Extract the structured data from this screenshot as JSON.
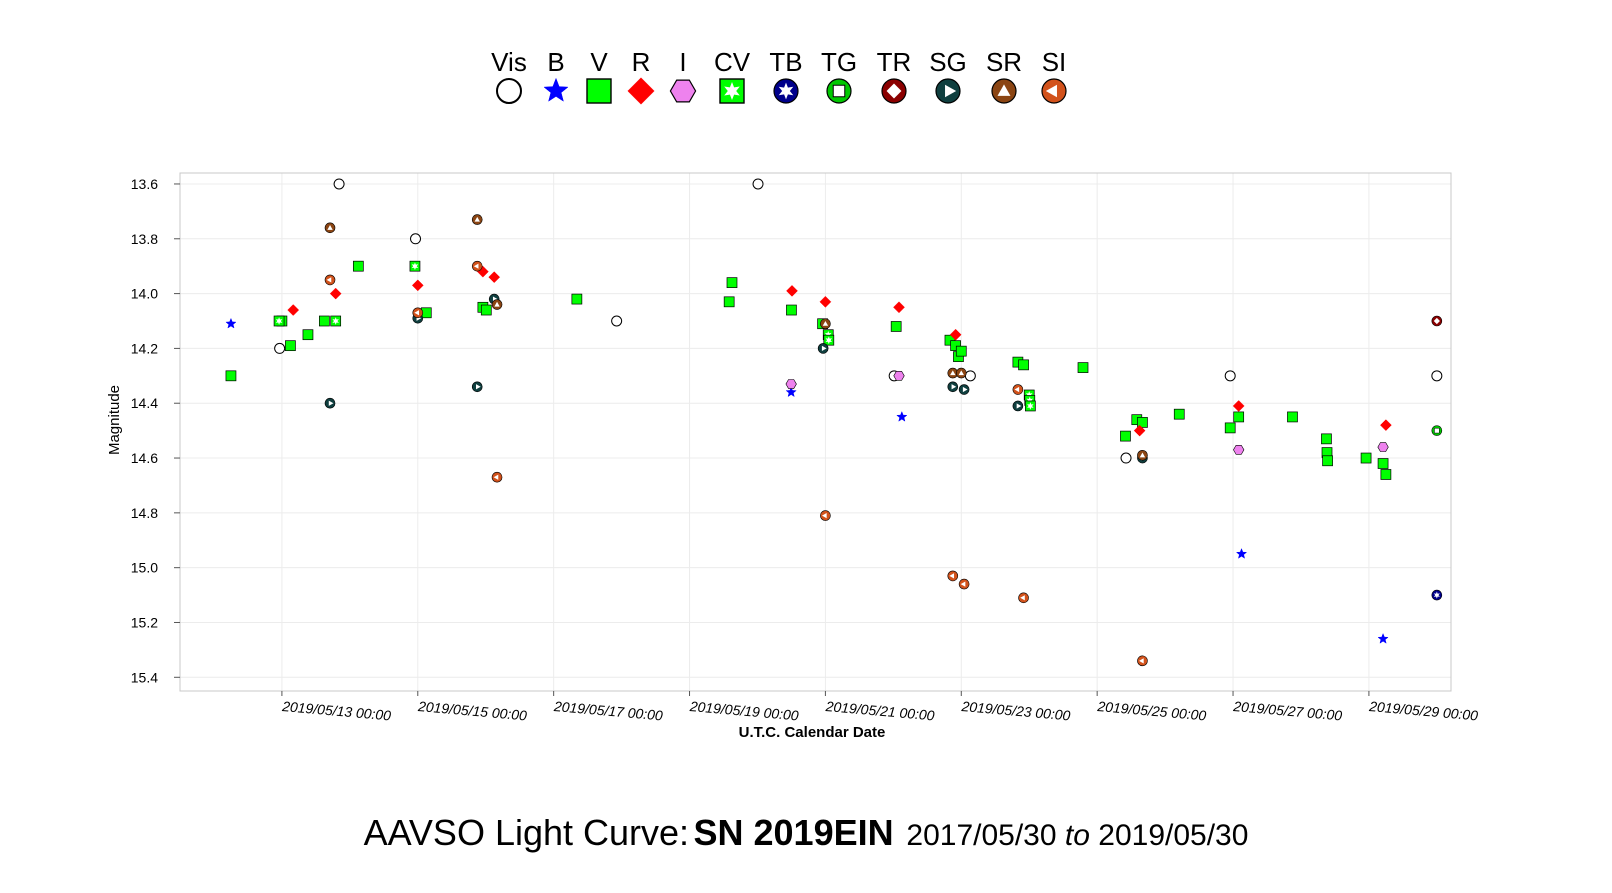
{
  "title": {
    "prefix": "AAVSO Light Curve:",
    "star": "SN 2019EIN",
    "range_start": "2017/05/30",
    "range_sep": "to",
    "range_end": "2019/05/30"
  },
  "chart_data": {
    "type": "scatter",
    "xlabel": "U.T.C. Calendar Date",
    "ylabel": "Magnitude",
    "x_unit": "days",
    "x_range": [
      "2019/05/11 12:00",
      "2019/05/30 05:00"
    ],
    "y_inverted": true,
    "ylim": [
      15.45,
      13.56
    ],
    "grid": true,
    "legend_placement": "top-center",
    "x_ticks": [
      "2019/05/13 00:00",
      "2019/05/15 00:00",
      "2019/05/17 00:00",
      "2019/05/19 00:00",
      "2019/05/21 00:00",
      "2019/05/23 00:00",
      "2019/05/25 00:00",
      "2019/05/27 00:00",
      "2019/05/29 00:00"
    ],
    "y_ticks": [
      "13.6",
      "13.8",
      "14.0",
      "14.2",
      "14.4",
      "14.6",
      "14.8",
      "15.0",
      "15.2",
      "15.4"
    ],
    "series": [
      {
        "name": "Vis",
        "marker": "circle-open",
        "color": "#ffffff",
        "edge": "#000000",
        "points": [
          [
            "2019/05/12 23:12",
            14.2
          ],
          [
            "2019/05/13 20:12",
            13.6
          ],
          [
            "2019/05/14 23:12",
            13.8
          ],
          [
            "2019/05/17 22:15",
            14.1
          ],
          [
            "2019/05/20 00:12",
            13.6
          ],
          [
            "2019/05/22 00:17",
            14.3
          ],
          [
            "2019/05/23 03:12",
            14.3
          ],
          [
            "2019/05/25 10:12",
            14.6
          ],
          [
            "2019/05/26 23:00",
            14.3
          ],
          [
            "2019/05/30 00:00",
            14.3
          ]
        ]
      },
      {
        "name": "B",
        "marker": "star",
        "color": "#0000ff",
        "edge": "#0000ff",
        "points": [
          [
            "2019/05/12 06:00",
            14.11
          ],
          [
            "2019/05/20 11:54",
            14.36
          ],
          [
            "2019/05/22 03:00",
            14.45
          ],
          [
            "2019/05/27 03:00",
            14.95
          ],
          [
            "2019/05/29 05:00",
            15.26
          ]
        ]
      },
      {
        "name": "V",
        "marker": "square",
        "color": "#00ff00",
        "edge": "#000000",
        "points": [
          [
            "2019/05/12 06:00",
            14.3
          ],
          [
            "2019/05/13 00:00",
            14.1
          ],
          [
            "2019/05/13 03:00",
            14.19
          ],
          [
            "2019/05/13 09:12",
            14.15
          ],
          [
            "2019/05/13 15:00",
            14.1
          ],
          [
            "2019/05/14 03:00",
            13.9
          ],
          [
            "2019/05/15 03:00",
            14.07
          ],
          [
            "2019/05/15 23:00",
            14.05
          ],
          [
            "2019/05/16 00:12",
            14.06
          ],
          [
            "2019/05/17 08:12",
            14.02
          ],
          [
            "2019/05/19 14:00",
            14.03
          ],
          [
            "2019/05/19 15:00",
            13.96
          ],
          [
            "2019/05/20 12:00",
            14.06
          ],
          [
            "2019/05/20 23:00",
            14.11
          ],
          [
            "2019/05/22 01:00",
            14.12
          ],
          [
            "2019/05/22 20:00",
            14.17
          ],
          [
            "2019/05/22 22:00",
            14.19
          ],
          [
            "2019/05/22 23:00",
            14.23
          ],
          [
            "2019/05/23 00:00",
            14.21
          ],
          [
            "2019/05/23 20:00",
            14.25
          ],
          [
            "2019/05/23 22:00",
            14.26
          ],
          [
            "2019/05/24 19:00",
            14.27
          ],
          [
            "2019/05/25 10:00",
            14.52
          ],
          [
            "2019/05/25 14:00",
            14.46
          ],
          [
            "2019/05/25 16:00",
            14.47
          ],
          [
            "2019/05/26 05:00",
            14.44
          ],
          [
            "2019/05/26 23:00",
            14.49
          ],
          [
            "2019/05/27 02:00",
            14.45
          ],
          [
            "2019/05/27 21:00",
            14.45
          ],
          [
            "2019/05/28 09:00",
            14.53
          ],
          [
            "2019/05/28 09:12",
            14.58
          ],
          [
            "2019/05/28 09:24",
            14.61
          ],
          [
            "2019/05/28 23:00",
            14.6
          ],
          [
            "2019/05/29 05:00",
            14.62
          ],
          [
            "2019/05/29 06:00",
            14.66
          ]
        ]
      },
      {
        "name": "R",
        "marker": "diamond",
        "color": "#ff0000",
        "edge": "#ff0000",
        "points": [
          [
            "2019/05/13 04:00",
            14.06
          ],
          [
            "2019/05/13 19:00",
            14.0
          ],
          [
            "2019/05/15 00:00",
            13.97
          ],
          [
            "2019/05/15 23:00",
            13.92
          ],
          [
            "2019/05/16 03:00",
            13.94
          ],
          [
            "2019/05/20 12:12",
            13.99
          ],
          [
            "2019/05/21 00:00",
            14.03
          ],
          [
            "2019/05/22 02:00",
            14.05
          ],
          [
            "2019/05/22 22:00",
            14.15
          ],
          [
            "2019/05/25 15:00",
            14.5
          ],
          [
            "2019/05/27 02:00",
            14.41
          ],
          [
            "2019/05/29 06:00",
            14.48
          ]
        ]
      },
      {
        "name": "I",
        "marker": "hexagon",
        "color": "#ee82ee",
        "edge": "#000000",
        "points": [
          [
            "2019/05/20 11:54",
            14.33
          ],
          [
            "2019/05/22 02:00",
            14.3
          ],
          [
            "2019/05/27 02:00",
            14.57
          ],
          [
            "2019/05/29 05:00",
            14.56
          ]
        ]
      },
      {
        "name": "CV",
        "marker": "square-star",
        "color": "#00ff00",
        "edge": "#000000",
        "points": [
          [
            "2019/05/12 23:00",
            14.1
          ],
          [
            "2019/05/13 19:00",
            14.1
          ],
          [
            "2019/05/14 23:00",
            13.9
          ],
          [
            "2019/05/21 01:00",
            14.15
          ],
          [
            "2019/05/21 01:12",
            14.17
          ],
          [
            "2019/05/24 00:00",
            14.37
          ],
          [
            "2019/05/24 00:12",
            14.39
          ],
          [
            "2019/05/24 00:24",
            14.41
          ]
        ]
      },
      {
        "name": "TB",
        "marker": "circle-star",
        "color": "#00008b",
        "edge": "#000000",
        "points": [
          [
            "2019/05/30 00:00",
            15.1
          ]
        ]
      },
      {
        "name": "TG",
        "marker": "circle-square",
        "color": "#00c800",
        "edge": "#000000",
        "points": [
          [
            "2019/05/30 00:00",
            14.5
          ]
        ]
      },
      {
        "name": "TR",
        "marker": "circle-diamond",
        "color": "#8b0000",
        "edge": "#000000",
        "points": [
          [
            "2019/05/30 00:00",
            14.1
          ]
        ]
      },
      {
        "name": "SG",
        "marker": "circle-tri-right",
        "color": "#0f3f3f",
        "edge": "#000000",
        "points": [
          [
            "2019/05/13 17:00",
            14.4
          ],
          [
            "2019/05/15 00:00",
            14.09
          ],
          [
            "2019/05/15 21:00",
            14.34
          ],
          [
            "2019/05/16 03:00",
            14.02
          ],
          [
            "2019/05/20 23:12",
            14.2
          ],
          [
            "2019/05/22 21:00",
            14.34
          ],
          [
            "2019/05/23 01:00",
            14.35
          ],
          [
            "2019/05/23 20:00",
            14.41
          ],
          [
            "2019/05/25 16:00",
            14.6
          ]
        ]
      },
      {
        "name": "SR",
        "marker": "circle-tri-up",
        "color": "#8b4513",
        "edge": "#000000",
        "points": [
          [
            "2019/05/13 17:00",
            13.76
          ],
          [
            "2019/05/15 21:00",
            13.73
          ],
          [
            "2019/05/16 04:00",
            14.04
          ],
          [
            "2019/05/21 00:00",
            14.11
          ],
          [
            "2019/05/22 21:00",
            14.29
          ],
          [
            "2019/05/23 00:00",
            14.29
          ],
          [
            "2019/05/25 16:00",
            14.59
          ]
        ]
      },
      {
        "name": "SI",
        "marker": "circle-tri-left",
        "color": "#d2521b",
        "edge": "#000000",
        "points": [
          [
            "2019/05/13 17:00",
            13.95
          ],
          [
            "2019/05/15 00:00",
            14.07
          ],
          [
            "2019/05/15 21:00",
            13.9
          ],
          [
            "2019/05/16 04:00",
            14.67
          ],
          [
            "2019/05/21 00:00",
            14.81
          ],
          [
            "2019/05/22 21:00",
            15.03
          ],
          [
            "2019/05/23 01:00",
            15.06
          ],
          [
            "2019/05/23 22:00",
            15.11
          ],
          [
            "2019/05/23 20:00",
            14.35
          ],
          [
            "2019/05/25 16:00",
            15.34
          ]
        ]
      }
    ]
  }
}
